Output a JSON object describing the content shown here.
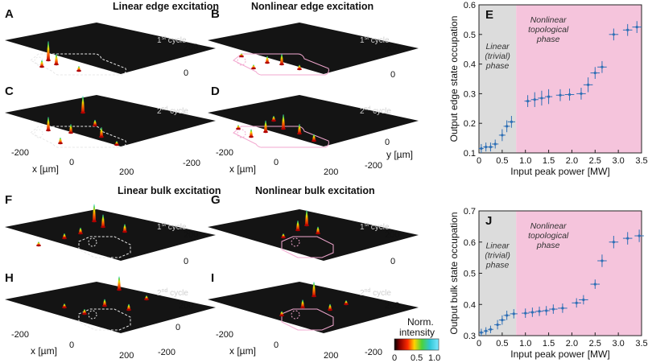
{
  "panels3d": {
    "A": {
      "label": "A",
      "title": "Linear edge excitation",
      "cycle": "1",
      "cycle_suffix": "st",
      "cycle_word": " cycle"
    },
    "B": {
      "label": "B",
      "title": "Nonlinear edge excitation",
      "cycle": "1",
      "cycle_suffix": "st",
      "cycle_word": " cycle"
    },
    "C": {
      "label": "C",
      "cycle": "2",
      "cycle_suffix": "nd",
      "cycle_word": " cycle"
    },
    "D": {
      "label": "D",
      "cycle": "2",
      "cycle_suffix": "nd",
      "cycle_word": " cycle"
    },
    "F": {
      "label": "F",
      "title": "Linear bulk excitation",
      "cycle": "1",
      "cycle_suffix": "st",
      "cycle_word": " cycle"
    },
    "G": {
      "label": "G",
      "title": "Nonlinear bulk excitation",
      "cycle": "1",
      "cycle_suffix": "st",
      "cycle_word": " cycle"
    },
    "H": {
      "label": "H",
      "cycle": "2",
      "cycle_suffix": "nd",
      "cycle_word": " cycle"
    },
    "I": {
      "label": "I",
      "cycle": "2",
      "cycle_suffix": "nd",
      "cycle_word": " cycle"
    }
  },
  "axes3d": {
    "x_label": "x [µm]",
    "y_label": "y [µm]",
    "x_ticks": [
      "-200",
      "0",
      "200"
    ],
    "y_ticks": [
      "200",
      "0",
      "-200"
    ]
  },
  "colorbar": {
    "title_line1": "Norm.",
    "title_line2": "intensity",
    "ticks": [
      "0",
      "0.5",
      "1.0"
    ]
  },
  "chart_data": [
    {
      "type": "scatter",
      "label": "E",
      "xlabel": "Input peak power [MW]",
      "ylabel": "Output edge state occupation",
      "xlim": [
        0,
        3.5
      ],
      "ylim": [
        0.1,
        0.6
      ],
      "xticks": [
        "0",
        "0.5",
        "1.0",
        "1.5",
        "2.0",
        "2.5",
        "3.0",
        "3.5"
      ],
      "yticks": [
        "0.1",
        "0.2",
        "0.3",
        "0.4",
        "0.5",
        "0.6"
      ],
      "phase_boundary": 0.8,
      "phase_left": [
        "Linear",
        "(trivial)",
        "phase"
      ],
      "phase_right": [
        "Nonlinear",
        "topological",
        "phase"
      ],
      "x": [
        0.05,
        0.15,
        0.25,
        0.35,
        0.5,
        0.6,
        0.7,
        1.05,
        1.2,
        1.35,
        1.5,
        1.75,
        1.95,
        2.2,
        2.35,
        2.5,
        2.65,
        2.9,
        3.2,
        3.4
      ],
      "y": [
        0.115,
        0.12,
        0.12,
        0.13,
        0.16,
        0.19,
        0.205,
        0.275,
        0.28,
        0.285,
        0.29,
        0.295,
        0.297,
        0.3,
        0.33,
        0.37,
        0.39,
        0.5,
        0.515,
        0.525
      ],
      "xerr": [
        0.05,
        0.06,
        0.06,
        0.07,
        0.07,
        0.07,
        0.08,
        0.07,
        0.08,
        0.08,
        0.08,
        0.09,
        0.1,
        0.1,
        0.1,
        0.1,
        0.1,
        0.1,
        0.1,
        0.1
      ],
      "yerr": [
        0.015,
        0.015,
        0.015,
        0.015,
        0.02,
        0.02,
        0.02,
        0.02,
        0.025,
        0.025,
        0.025,
        0.02,
        0.02,
        0.02,
        0.025,
        0.02,
        0.02,
        0.02,
        0.02,
        0.02
      ]
    },
    {
      "type": "scatter",
      "label": "J",
      "xlabel": "Input peak power [MW]",
      "ylabel": "Output bulk state occupation",
      "xlim": [
        0,
        3.5
      ],
      "ylim": [
        0.3,
        0.7
      ],
      "xticks": [
        "0",
        "0.5",
        "1.0",
        "1.5",
        "2.0",
        "2.5",
        "3.0",
        "3.5"
      ],
      "yticks": [
        "0.3",
        "0.4",
        "0.5",
        "0.6",
        "0.7"
      ],
      "phase_boundary": 0.8,
      "phase_left": [
        "Linear",
        "(trivial)",
        "phase"
      ],
      "phase_right": [
        "Nonlinear",
        "topological",
        "phase"
      ],
      "x": [
        0.05,
        0.15,
        0.25,
        0.4,
        0.5,
        0.6,
        0.75,
        1.0,
        1.15,
        1.3,
        1.45,
        1.6,
        1.8,
        2.1,
        2.25,
        2.5,
        2.65,
        2.9,
        3.2,
        3.45
      ],
      "y": [
        0.31,
        0.315,
        0.32,
        0.335,
        0.35,
        0.365,
        0.37,
        0.372,
        0.375,
        0.378,
        0.38,
        0.385,
        0.388,
        0.405,
        0.415,
        0.465,
        0.54,
        0.6,
        0.612,
        0.62
      ],
      "xerr": [
        0.05,
        0.05,
        0.06,
        0.07,
        0.07,
        0.07,
        0.08,
        0.08,
        0.08,
        0.08,
        0.08,
        0.09,
        0.1,
        0.1,
        0.1,
        0.1,
        0.1,
        0.1,
        0.1,
        0.1
      ],
      "yerr": [
        0.012,
        0.012,
        0.012,
        0.015,
        0.015,
        0.015,
        0.015,
        0.015,
        0.015,
        0.015,
        0.015,
        0.015,
        0.015,
        0.015,
        0.015,
        0.015,
        0.02,
        0.02,
        0.02,
        0.02
      ]
    }
  ],
  "colors": {
    "linear_bg": "#dcdcdc",
    "nonlinear_bg": "#f5c4dc",
    "data": "#2e6fb5",
    "plane": "#141414"
  }
}
